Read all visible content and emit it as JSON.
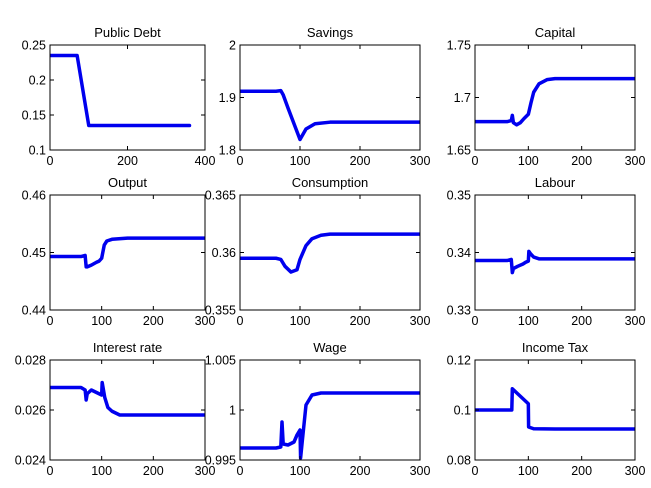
{
  "chart_data": [
    {
      "type": "line",
      "title": "Public Debt",
      "xlim": [
        0,
        400
      ],
      "ylim": [
        0.1,
        0.25
      ],
      "xticks": [
        0,
        200,
        400
      ],
      "xtick_labels": [
        "0",
        "200",
        "400"
      ],
      "yticks": [
        0.1,
        0.15,
        0.2,
        0.25
      ],
      "ytick_labels": [
        "0.1",
        "0.15",
        "0.2",
        "0.25"
      ],
      "grid": false,
      "color": "#0000ee",
      "series": [
        {
          "x": [
            1,
            70,
            100,
            360
          ],
          "y": [
            0.235,
            0.235,
            0.135,
            0.135
          ]
        }
      ]
    },
    {
      "type": "line",
      "title": "Savings",
      "xlim": [
        0,
        300
      ],
      "ylim": [
        1.8,
        2.0
      ],
      "xticks": [
        0,
        100,
        200,
        300
      ],
      "xtick_labels": [
        "0",
        "100",
        "200",
        "300"
      ],
      "yticks": [
        1.8,
        1.9,
        2.0
      ],
      "ytick_labels": [
        "1.8",
        "1.9",
        "2"
      ],
      "grid": false,
      "color": "#0000ee",
      "series": [
        {
          "x": [
            1,
            60,
            68,
            72,
            80,
            90,
            100,
            110,
            125,
            150,
            200,
            300
          ],
          "y": [
            1.912,
            1.912,
            1.913,
            1.905,
            1.88,
            1.85,
            1.82,
            1.84,
            1.85,
            1.853,
            1.853,
            1.853
          ]
        }
      ]
    },
    {
      "type": "line",
      "title": "Capital",
      "xlim": [
        0,
        300
      ],
      "ylim": [
        1.65,
        1.75
      ],
      "xticks": [
        0,
        100,
        200,
        300
      ],
      "xtick_labels": [
        "0",
        "100",
        "200",
        "300"
      ],
      "yticks": [
        1.65,
        1.7,
        1.75
      ],
      "ytick_labels": [
        "1.65",
        "1.7",
        "1.75"
      ],
      "grid": false,
      "color": "#0000ee",
      "series": [
        {
          "x": [
            1,
            60,
            68,
            70,
            72,
            78,
            85,
            92,
            100,
            105,
            110,
            120,
            135,
            150,
            200,
            300
          ],
          "y": [
            1.677,
            1.677,
            1.678,
            1.683,
            1.676,
            1.674,
            1.676,
            1.68,
            1.684,
            1.695,
            1.705,
            1.713,
            1.717,
            1.718,
            1.718,
            1.718
          ]
        }
      ]
    },
    {
      "type": "line",
      "title": "Output",
      "xlim": [
        0,
        300
      ],
      "ylim": [
        0.44,
        0.46
      ],
      "xticks": [
        0,
        100,
        200,
        300
      ],
      "xtick_labels": [
        "0",
        "100",
        "200",
        "300"
      ],
      "yticks": [
        0.44,
        0.45,
        0.46
      ],
      "ytick_labels": [
        "0.44",
        "0.45",
        "0.46"
      ],
      "grid": false,
      "color": "#0000ee",
      "series": [
        {
          "x": [
            1,
            60,
            68,
            70,
            72,
            80,
            90,
            95,
            100,
            105,
            110,
            120,
            150,
            300
          ],
          "y": [
            0.4493,
            0.4493,
            0.4495,
            0.4475,
            0.4475,
            0.4478,
            0.4483,
            0.4485,
            0.449,
            0.4513,
            0.452,
            0.4523,
            0.4525,
            0.4525
          ]
        }
      ]
    },
    {
      "type": "line",
      "title": "Consumption",
      "xlim": [
        0,
        300
      ],
      "ylim": [
        0.355,
        0.365
      ],
      "xticks": [
        0,
        100,
        200,
        300
      ],
      "xtick_labels": [
        "0",
        "100",
        "200",
        "300"
      ],
      "yticks": [
        0.355,
        0.36,
        0.365
      ],
      "ytick_labels": [
        "0.355",
        "0.36",
        "0.365"
      ],
      "grid": false,
      "color": "#0000ee",
      "series": [
        {
          "x": [
            1,
            60,
            68,
            75,
            85,
            95,
            100,
            110,
            120,
            135,
            150,
            200,
            300
          ],
          "y": [
            0.3595,
            0.3595,
            0.3594,
            0.3588,
            0.3583,
            0.3585,
            0.3594,
            0.3606,
            0.3612,
            0.3615,
            0.3616,
            0.3616,
            0.3616
          ]
        }
      ]
    },
    {
      "type": "line",
      "title": "Labour",
      "xlim": [
        0,
        300
      ],
      "ylim": [
        0.33,
        0.35
      ],
      "xticks": [
        0,
        100,
        200,
        300
      ],
      "xtick_labels": [
        "0",
        "100",
        "200",
        "300"
      ],
      "yticks": [
        0.33,
        0.34,
        0.35
      ],
      "ytick_labels": [
        "0.33",
        "0.34",
        "0.35"
      ],
      "grid": false,
      "color": "#0000ee",
      "series": [
        {
          "x": [
            1,
            60,
            68,
            70,
            72,
            80,
            90,
            95,
            100,
            101,
            104,
            110,
            120,
            300
          ],
          "y": [
            0.3386,
            0.3386,
            0.3388,
            0.3365,
            0.3372,
            0.3376,
            0.338,
            0.3383,
            0.3385,
            0.3402,
            0.3398,
            0.3392,
            0.3389,
            0.3389
          ]
        }
      ]
    },
    {
      "type": "line",
      "title": "Interest rate",
      "xlim": [
        0,
        300
      ],
      "ylim": [
        0.024,
        0.028
      ],
      "xticks": [
        0,
        100,
        200,
        300
      ],
      "xtick_labels": [
        "0",
        "100",
        "200",
        "300"
      ],
      "yticks": [
        0.024,
        0.026,
        0.028
      ],
      "ytick_labels": [
        "0.024",
        "0.026",
        "0.028"
      ],
      "grid": false,
      "color": "#0000ee",
      "series": [
        {
          "x": [
            1,
            60,
            68,
            70,
            72,
            80,
            90,
            95,
            100,
            101,
            106,
            112,
            120,
            135,
            150,
            200,
            300
          ],
          "y": [
            0.0269,
            0.0269,
            0.0268,
            0.0264,
            0.02665,
            0.0268,
            0.0267,
            0.02665,
            0.0266,
            0.0271,
            0.0265,
            0.0261,
            0.02595,
            0.0258,
            0.0258,
            0.0258,
            0.0258
          ]
        }
      ]
    },
    {
      "type": "line",
      "title": "Wage",
      "xlim": [
        0,
        300
      ],
      "ylim": [
        0.995,
        1.005
      ],
      "xticks": [
        0,
        100,
        200,
        300
      ],
      "xtick_labels": [
        "0",
        "100",
        "200",
        "300"
      ],
      "yticks": [
        0.995,
        1.0,
        1.005
      ],
      "ytick_labels": [
        "0.995",
        "1",
        "1.005"
      ],
      "grid": false,
      "color": "#0000ee",
      "series": [
        {
          "x": [
            1,
            60,
            68,
            70,
            72,
            80,
            90,
            95,
            100,
            101,
            104,
            110,
            120,
            135,
            150,
            200,
            300
          ],
          "y": [
            0.9962,
            0.9962,
            0.9963,
            0.9988,
            0.9966,
            0.9965,
            0.9968,
            0.9975,
            0.998,
            0.9952,
            0.997,
            1.0005,
            1.0015,
            1.0017,
            1.0017,
            1.0017,
            1.0017
          ]
        }
      ]
    },
    {
      "type": "line",
      "title": "Income Tax",
      "xlim": [
        0,
        300
      ],
      "ylim": [
        0.08,
        0.12
      ],
      "xticks": [
        0,
        100,
        200,
        300
      ],
      "xtick_labels": [
        "0",
        "100",
        "200",
        "300"
      ],
      "yticks": [
        0.08,
        0.1,
        0.12
      ],
      "ytick_labels": [
        "0.08",
        "0.1",
        "0.12"
      ],
      "grid": false,
      "color": "#0000ee",
      "series": [
        {
          "x": [
            1,
            69,
            70,
            85,
            100,
            100.5,
            110,
            150,
            300
          ],
          "y": [
            0.1,
            0.1,
            0.1085,
            0.1055,
            0.1025,
            0.0932,
            0.0925,
            0.0924,
            0.0924
          ]
        }
      ]
    }
  ]
}
